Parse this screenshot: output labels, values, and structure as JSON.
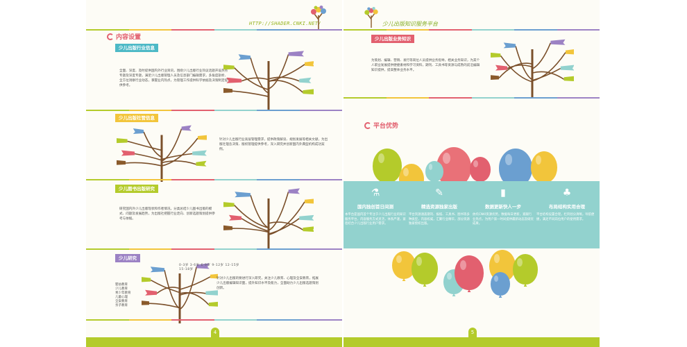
{
  "header": {
    "url": "HTTP://SHADER.CNKI.NET/",
    "brand": "少儿出版知识服务平台"
  },
  "left": {
    "section_title": "内容设置",
    "blocks": [
      {
        "tag": "少儿出版行业信息",
        "text": "全面、深度、及时提供国内外行业资讯，围绕少儿出版行业热议话题开设热点专题及深度专题，满足少儿出版管理人员及信息部门编辑需求，多角度剖析、全方位洞察行业动态，掌握业内热点，为管理工作提供科学依据及决策制定提供参考。"
      },
      {
        "tag": "少儿出版社管信息",
        "text": "针对少儿出版行业高层管理需求，提供政策解读、规划发展等相关文献，为出版社理念决策、版权管理提供参考，深入研究并创新国内外典型机构成功案例。"
      },
      {
        "tag": "少儿图书出版研究",
        "text": "研究国内外少儿出版现状和作者情况，分类总结少儿图书出版的模式、问题及发展趋势，为出版社把握行业走向、创新选题策划提供参考与依据。"
      },
      {
        "tag": "少儿研究",
        "text": "针对少儿出版的要进行深入研究，关注少儿教育、心理及全安教育，拓展少儿出版编辑知识面，提升知识水平及能力，全面助力少儿出版选题策划创新。"
      }
    ],
    "books_text": "0-3岁  3-6岁  6-9岁  9-12岁  12-15岁  15-18岁",
    "hand_list": [
      "婴幼教育",
      "少儿教育",
      "青少年教育",
      "儿童心理",
      "全安教育",
      "亲子教育"
    ],
    "page_number": "4"
  },
  "right": {
    "tag": "少儿出版业务知识",
    "text": "为策划、编辑、营销、发行等岗位人员提供业务指导，相关业务知识，为其个人职业发展提供便捷素材和学习资料，期刊、工具书等资源与成熟的前沿编辑知识提供，提高整体业务水平。",
    "section_title": "平台优势",
    "features": [
      {
        "icon": "⚗",
        "title": "国内独创首日间测",
        "desc": "本平台是国内首个专注于少儿出版行业的知识服务平台，内容服务方式灵活，体系严谨，紧密结合少儿出版行业用户需求。"
      },
      {
        "icon": "✎",
        "title": "精选资源独家出版",
        "desc": "平台资源涵盖期刊、报纸、工具书、图书等多种类型，内容权威，汇聚行业精华，部分资源独家授权出版。"
      },
      {
        "icon": "▮",
        "title": "数据更新快人一步",
        "desc": "依托CNKI资源优势，数据每日更新，紧跟行业热点，为用户第一时间提供最新动态及研究成果。"
      },
      {
        "icon": "♣",
        "title": "布局结构实用合理",
        "desc": "平台结构设置合理，栏目划分清晰，导航便捷，满足不同岗位用户的使用需求。"
      }
    ],
    "page_number": "5"
  },
  "colors": {
    "green": "#b4cb2b",
    "red": "#e2606f",
    "teal": "#92d2ce",
    "orange": "#f2a83b",
    "blue": "#6b9fd0",
    "purple": "#9c82c4"
  }
}
